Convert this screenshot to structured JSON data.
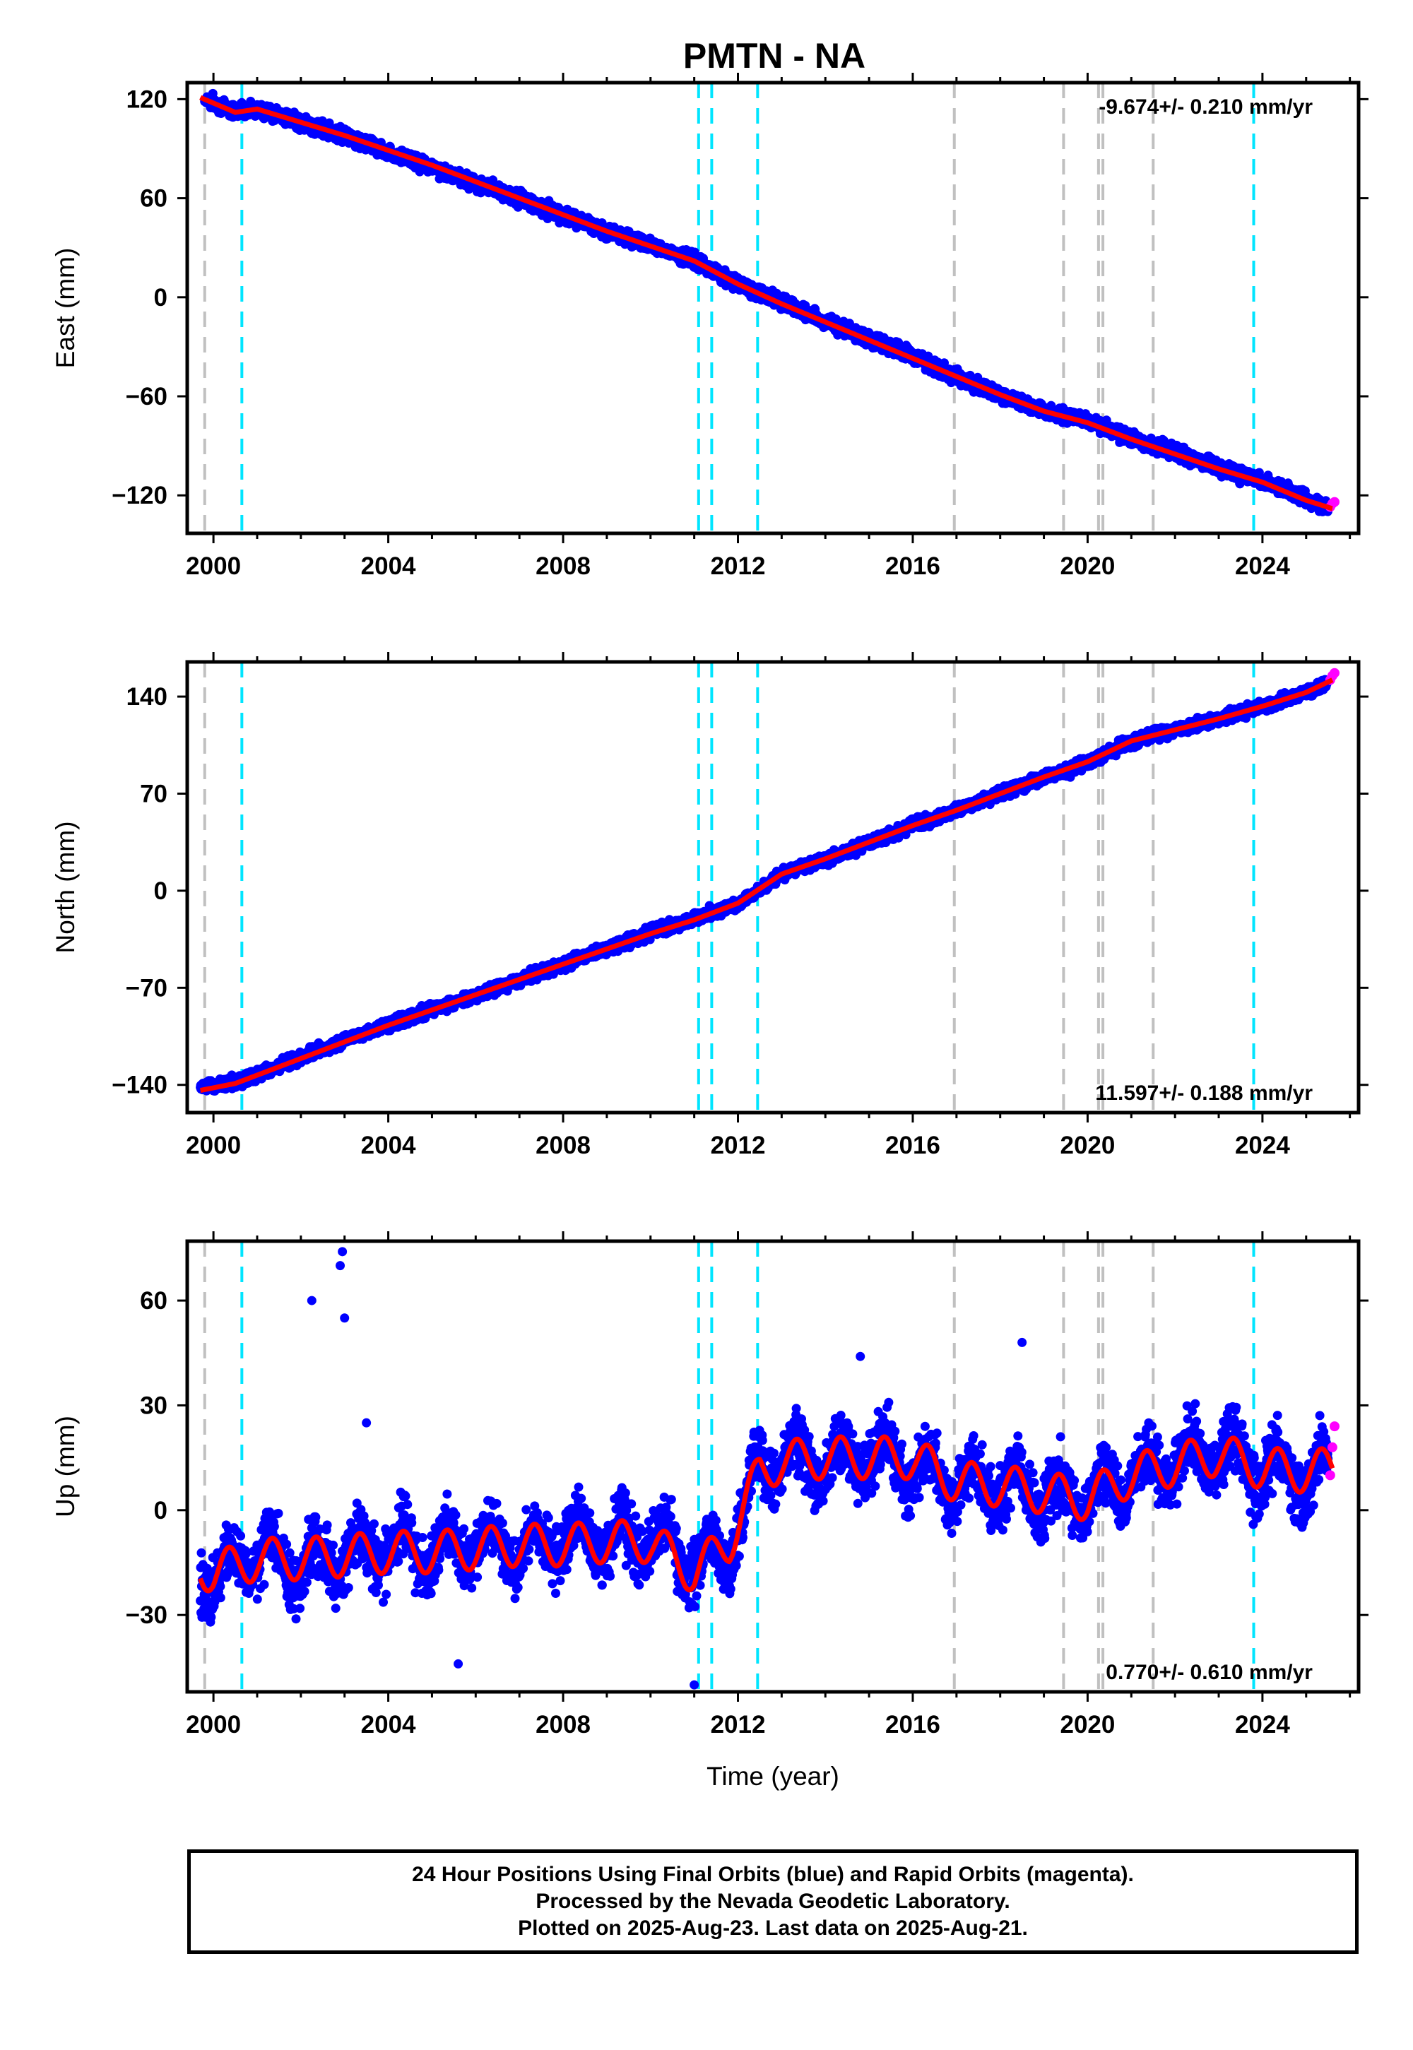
{
  "title": "PMTN - NA",
  "footer": {
    "line1": "24 Hour Positions Using Final Orbits (blue) and Rapid Orbits (magenta).",
    "line2": "Processed by the Nevada Geodetic Laboratory.",
    "line3": "Plotted on 2025-Aug-23. Last data on 2025-Aug-21."
  },
  "chart_data": [
    {
      "type": "scatter",
      "panel": "east",
      "ylabel": "East (mm)",
      "xlabel": "",
      "xlim": [
        1999.4,
        2026.2
      ],
      "ylim": [
        -143,
        130
      ],
      "yticks": [
        120,
        60,
        0,
        -60,
        -120
      ],
      "xticks": [
        2000,
        2004,
        2008,
        2012,
        2016,
        2020,
        2024
      ],
      "rate_text": "-9.674+/- 0.210 mm/yr",
      "rate_position": "top-right",
      "series": [
        {
          "role": "final-orbits",
          "color": "#0000ff",
          "x": [
            1999.8,
            2000.5,
            2001,
            2002,
            2003,
            2004,
            2005,
            2006,
            2007,
            2008,
            2009,
            2010,
            2011,
            2012,
            2013,
            2014,
            2015,
            2016,
            2017,
            2018,
            2019,
            2020,
            2021,
            2022,
            2023,
            2024,
            2025,
            2025.5
          ],
          "y": [
            120,
            113,
            114,
            106,
            98,
            88,
            79,
            69,
            60,
            49,
            40,
            32,
            22,
            8,
            -3,
            -15,
            -25,
            -36,
            -48,
            -59,
            -69,
            -75,
            -85,
            -94,
            -103,
            -111,
            -122,
            -128
          ]
        },
        {
          "role": "rapid-orbits",
          "color": "#ff00ff",
          "x": [
            2025.55,
            2025.6,
            2025.65
          ],
          "y": [
            -127,
            -125,
            -124
          ]
        },
        {
          "role": "model-fit",
          "color": "#ff0000",
          "x": [
            1999.7,
            2000.5,
            2001,
            2002,
            2003,
            2004,
            2005,
            2006,
            2007,
            2008,
            2009,
            2010,
            2011,
            2012,
            2013,
            2014,
            2015,
            2016,
            2017,
            2018,
            2019,
            2020,
            2021,
            2022,
            2023,
            2024,
            2025,
            2025.6
          ],
          "y": [
            121,
            112,
            114,
            106,
            98,
            89,
            80,
            70,
            60,
            50,
            40,
            31,
            22,
            8,
            -4,
            -15,
            -26,
            -37,
            -48,
            -59,
            -69,
            -76,
            -86,
            -95,
            -104,
            -112,
            -123,
            -128
          ]
        }
      ],
      "gray_event_years": [
        1999.8,
        2016.95,
        2019.45,
        2020.25,
        2020.35,
        2021.5
      ],
      "cyan_event_years": [
        2000.65,
        2011.1,
        2011.4,
        2012.45,
        2023.8
      ]
    },
    {
      "type": "scatter",
      "panel": "north",
      "ylabel": "North (mm)",
      "xlabel": "",
      "xlim": [
        1999.4,
        2026.2
      ],
      "ylim": [
        -160,
        165
      ],
      "yticks": [
        140,
        70,
        0,
        -70,
        -140
      ],
      "xticks": [
        2000,
        2004,
        2008,
        2012,
        2016,
        2020,
        2024
      ],
      "rate_text": "11.597+/- 0.188 mm/yr",
      "rate_position": "bottom-right",
      "series": [
        {
          "role": "final-orbits",
          "color": "#0000ff",
          "x": [
            1999.7,
            2000.5,
            2001,
            2002,
            2003,
            2004,
            2005,
            2006,
            2007,
            2008,
            2009,
            2010,
            2011,
            2012,
            2013,
            2014,
            2015,
            2016,
            2017,
            2018,
            2019,
            2020,
            2021,
            2022,
            2023,
            2024,
            2025,
            2025.5
          ],
          "y": [
            -142,
            -138,
            -133,
            -120,
            -108,
            -97,
            -85,
            -76,
            -64,
            -53,
            -42,
            -30,
            -20,
            -10,
            12,
            22,
            35,
            47,
            58,
            70,
            82,
            92,
            108,
            116,
            124,
            133,
            143,
            150
          ]
        },
        {
          "role": "rapid-orbits",
          "color": "#ff00ff",
          "x": [
            2025.55,
            2025.6,
            2025.65
          ],
          "y": [
            152,
            155,
            157
          ]
        },
        {
          "role": "model-fit",
          "color": "#ff0000",
          "x": [
            1999.7,
            2000.5,
            2001,
            2002,
            2003,
            2004,
            2005,
            2006,
            2007,
            2008,
            2009,
            2010,
            2011,
            2012,
            2013,
            2014,
            2015,
            2016,
            2017,
            2018,
            2019,
            2020,
            2021,
            2022,
            2023,
            2024,
            2025,
            2025.6
          ],
          "y": [
            -144,
            -139,
            -133,
            -121,
            -109,
            -97,
            -86,
            -75,
            -64,
            -53,
            -42,
            -31,
            -21,
            -9,
            12,
            23,
            35,
            47,
            58,
            70,
            82,
            93,
            108,
            116,
            124,
            133,
            143,
            152
          ]
        }
      ],
      "gray_event_years": [
        1999.8,
        2016.95,
        2019.45,
        2020.25,
        2020.35,
        2021.5
      ],
      "cyan_event_years": [
        2000.65,
        2011.1,
        2011.4,
        2012.45,
        2023.8
      ]
    },
    {
      "type": "scatter",
      "panel": "up",
      "ylabel": "Up (mm)",
      "xlabel": "Time (year)",
      "xlim": [
        1999.4,
        2026.2
      ],
      "ylim": [
        -52,
        77
      ],
      "yticks": [
        60,
        30,
        0,
        -30
      ],
      "xticks": [
        2000,
        2004,
        2008,
        2012,
        2016,
        2020,
        2024
      ],
      "rate_text": "0.770+/- 0.610 mm/yr",
      "rate_position": "bottom-right",
      "series": [
        {
          "role": "final-orbits",
          "color": "#0000ff",
          "x": [
            1999.7,
            2000,
            2001,
            2002,
            2003,
            2004,
            2005,
            2006,
            2007,
            2008,
            2009,
            2010,
            2011,
            2011.8,
            2012.5,
            2013,
            2014,
            2015,
            2016,
            2017,
            2018,
            2019,
            2020,
            2021,
            2022,
            2023,
            2024,
            2025,
            2025.5
          ],
          "y": [
            -18,
            -20,
            -12,
            -16,
            -13,
            -10,
            -12,
            -9,
            -11,
            -8,
            -10,
            -7,
            -15,
            -12,
            12,
            15,
            13,
            16,
            12,
            8,
            6,
            4,
            3,
            9,
            13,
            17,
            11,
            9,
            10
          ],
          "outliers_x": [
            2002.25,
            2002.9,
            2002.95,
            2003.0,
            2003.5,
            2005.6,
            2011.0,
            2018.5,
            2014.8
          ],
          "outliers_y": [
            60,
            70,
            74,
            55,
            25,
            -44,
            -50,
            48,
            44
          ]
        },
        {
          "role": "rapid-orbits",
          "color": "#ff00ff",
          "x": [
            2025.55,
            2025.6,
            2025.65
          ],
          "y": [
            10,
            18,
            24
          ]
        },
        {
          "role": "model-fit",
          "color": "#ff0000",
          "seasonal_amplitude": 6,
          "x": [
            1999.7,
            2000,
            2001,
            2002,
            2003,
            2004,
            2005,
            2006,
            2007,
            2008,
            2009,
            2010,
            2011,
            2011.8,
            2012.5,
            2013,
            2014,
            2015,
            2016,
            2017,
            2018,
            2019,
            2020,
            2021,
            2022,
            2023,
            2024,
            2025,
            2025.6
          ],
          "y": [
            -16,
            -18,
            -14,
            -14,
            -13,
            -12,
            -12,
            -11,
            -10,
            -10,
            -9,
            -9,
            -18,
            -9,
            11,
            14,
            15,
            15,
            15,
            8,
            7,
            5,
            3,
            10,
            13,
            16,
            12,
            11,
            12
          ]
        }
      ],
      "gray_event_years": [
        1999.8,
        2016.95,
        2019.45,
        2020.25,
        2020.35,
        2021.5
      ],
      "cyan_event_years": [
        2000.65,
        2011.1,
        2011.4,
        2012.45,
        2023.8
      ]
    }
  ]
}
